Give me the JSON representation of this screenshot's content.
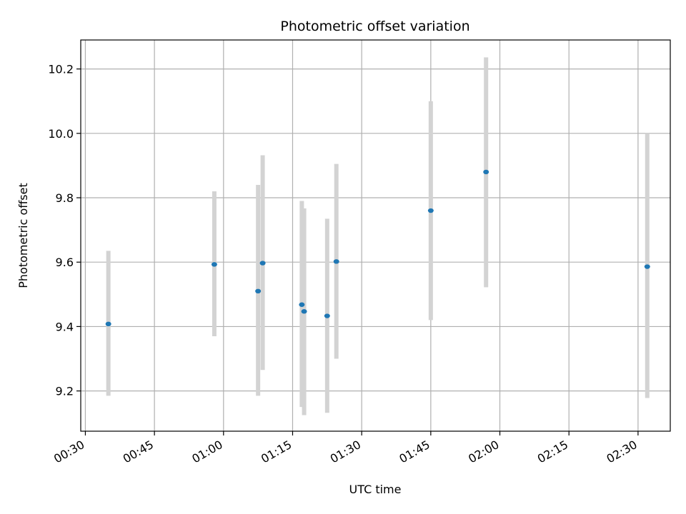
{
  "chart_data": {
    "type": "scatter",
    "title": "Photometric offset variation",
    "xlabel": "UTC time",
    "ylabel": "Photometric offset",
    "grid": true,
    "x_tick_labels": [
      "00:30",
      "00:45",
      "01:00",
      "01:15",
      "01:30",
      "01:45",
      "02:00",
      "02:15",
      "02:30"
    ],
    "y_tick_labels": [
      "9.2",
      "9.4",
      "9.6",
      "9.8",
      "10.0",
      "10.2"
    ],
    "xlim": [
      "00:29",
      "02:37"
    ],
    "ylim": [
      9.075,
      10.29
    ],
    "x": [
      "00:35",
      "00:58",
      "01:07.5",
      "01:08.5",
      "01:17",
      "01:17.5",
      "01:22.5",
      "01:24.5",
      "01:45",
      "01:57",
      "02:32"
    ],
    "y": [
      9.408,
      9.593,
      9.51,
      9.597,
      9.468,
      9.447,
      9.433,
      9.602,
      9.76,
      9.88,
      9.586
    ],
    "yerr_low": [
      9.185,
      9.37,
      9.185,
      9.265,
      9.15,
      9.125,
      9.132,
      9.3,
      9.42,
      9.522,
      9.178
    ],
    "yerr_high": [
      9.635,
      9.82,
      9.84,
      9.932,
      9.79,
      9.767,
      9.735,
      9.905,
      10.1,
      10.236,
      10.0
    ],
    "colors": {
      "points": "#1f77b4",
      "errorbars": "#d3d3d3",
      "grid": "#b0b0b0"
    }
  }
}
